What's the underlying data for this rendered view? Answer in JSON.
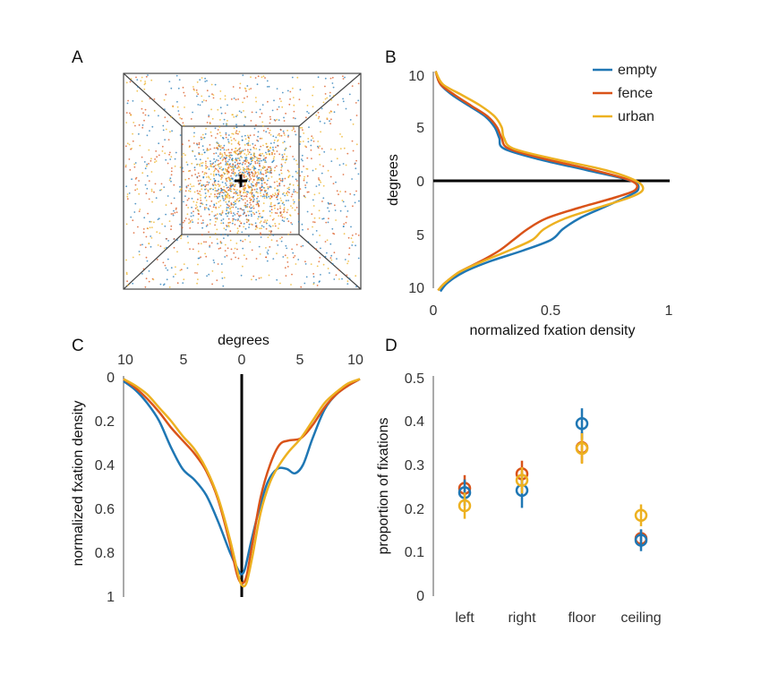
{
  "colors": {
    "empty": "#1f77b4",
    "fence": "#d95319",
    "urban": "#edb120"
  },
  "chart_data": [
    {
      "panel": "A",
      "type": "scatter",
      "title": "",
      "xlabel": "",
      "ylabel": "",
      "series": [
        {
          "key": "empty",
          "count": 700
        },
        {
          "key": "fence",
          "count": 700
        },
        {
          "key": "urban",
          "count": 700
        }
      ],
      "center_marker": "plus",
      "grid": false
    },
    {
      "panel": "B",
      "type": "line",
      "xlabel": "normalized fxation density",
      "ylabel": "degrees",
      "xlim": [
        0,
        1
      ],
      "ylim": [
        -10,
        10
      ],
      "xticks": [
        "0",
        "0.5",
        "1"
      ],
      "yticks": [
        "10",
        "5",
        "0",
        "5",
        "10"
      ],
      "reference_line": "y=0",
      "legend": {
        "placement": "top-right",
        "entries": [
          "empty",
          "fence",
          "urban"
        ]
      },
      "series": [
        {
          "name": "empty",
          "key": "empty",
          "points": [
            [
              0.01,
              10.2
            ],
            [
              0.03,
              9
            ],
            [
              0.08,
              8
            ],
            [
              0.15,
              7
            ],
            [
              0.22,
              6
            ],
            [
              0.26,
              5
            ],
            [
              0.28,
              4
            ],
            [
              0.3,
              3
            ],
            [
              0.45,
              2
            ],
            [
              0.65,
              1
            ],
            [
              0.84,
              0
            ],
            [
              0.87,
              -0.8
            ],
            [
              0.82,
              -1.5
            ],
            [
              0.72,
              -2.5
            ],
            [
              0.62,
              -3.5
            ],
            [
              0.55,
              -4.5
            ],
            [
              0.5,
              -5.5
            ],
            [
              0.38,
              -6.5
            ],
            [
              0.24,
              -7.5
            ],
            [
              0.13,
              -8.5
            ],
            [
              0.06,
              -9.5
            ],
            [
              0.03,
              -10.3
            ]
          ]
        },
        {
          "name": "fence",
          "key": "fence",
          "points": [
            [
              0.01,
              10.2
            ],
            [
              0.03,
              9
            ],
            [
              0.09,
              8
            ],
            [
              0.16,
              7
            ],
            [
              0.23,
              6
            ],
            [
              0.27,
              5
            ],
            [
              0.29,
              4
            ],
            [
              0.32,
              3
            ],
            [
              0.48,
              2
            ],
            [
              0.68,
              1
            ],
            [
              0.84,
              0
            ],
            [
              0.86,
              -0.8
            ],
            [
              0.78,
              -1.5
            ],
            [
              0.62,
              -2.5
            ],
            [
              0.48,
              -3.5
            ],
            [
              0.4,
              -4.5
            ],
            [
              0.34,
              -5.5
            ],
            [
              0.28,
              -6.5
            ],
            [
              0.2,
              -7.5
            ],
            [
              0.11,
              -8.5
            ],
            [
              0.05,
              -9.5
            ],
            [
              0.02,
              -10.2
            ]
          ]
        },
        {
          "name": "urban",
          "key": "urban",
          "points": [
            [
              0.01,
              10.2
            ],
            [
              0.04,
              9
            ],
            [
              0.12,
              8
            ],
            [
              0.2,
              7
            ],
            [
              0.26,
              6
            ],
            [
              0.29,
              5
            ],
            [
              0.3,
              4
            ],
            [
              0.34,
              3
            ],
            [
              0.52,
              2
            ],
            [
              0.73,
              1
            ],
            [
              0.86,
              0
            ],
            [
              0.89,
              -0.8
            ],
            [
              0.84,
              -1.5
            ],
            [
              0.7,
              -2.5
            ],
            [
              0.56,
              -3.5
            ],
            [
              0.47,
              -4.5
            ],
            [
              0.42,
              -5.5
            ],
            [
              0.32,
              -6.5
            ],
            [
              0.21,
              -7.5
            ],
            [
              0.11,
              -8.5
            ],
            [
              0.05,
              -9.5
            ],
            [
              0.02,
              -10.2
            ]
          ]
        }
      ]
    },
    {
      "panel": "C",
      "type": "line",
      "xlabel": "degrees",
      "ylabel": "normalized fxation density",
      "xlim": [
        -10,
        10
      ],
      "ylim": [
        0,
        1
      ],
      "y_inverted": true,
      "xticks": [
        "10",
        "5",
        "0",
        "5",
        "10"
      ],
      "yticks": [
        "0",
        "0.2",
        "0.4",
        "0.6",
        "0.8",
        "1"
      ],
      "reference_line": "x=0",
      "series": [
        {
          "name": "empty",
          "key": "empty",
          "points": [
            [
              -10,
              0.02
            ],
            [
              -9,
              0.06
            ],
            [
              -8,
              0.12
            ],
            [
              -7,
              0.2
            ],
            [
              -6,
              0.32
            ],
            [
              -5,
              0.42
            ],
            [
              -4,
              0.47
            ],
            [
              -3,
              0.54
            ],
            [
              -2,
              0.66
            ],
            [
              -1,
              0.8
            ],
            [
              -0.3,
              0.88
            ],
            [
              0,
              0.9
            ],
            [
              0.3,
              0.87
            ],
            [
              0.8,
              0.75
            ],
            [
              1.5,
              0.6
            ],
            [
              2.2,
              0.48
            ],
            [
              3,
              0.42
            ],
            [
              3.8,
              0.42
            ],
            [
              4.5,
              0.44
            ],
            [
              5.2,
              0.4
            ],
            [
              6,
              0.28
            ],
            [
              7,
              0.15
            ],
            [
              8,
              0.08
            ],
            [
              9,
              0.04
            ],
            [
              10,
              0.01
            ]
          ]
        },
        {
          "name": "fence",
          "key": "fence",
          "points": [
            [
              -10,
              0.01
            ],
            [
              -9,
              0.05
            ],
            [
              -8,
              0.1
            ],
            [
              -7,
              0.16
            ],
            [
              -6,
              0.23
            ],
            [
              -5,
              0.29
            ],
            [
              -4,
              0.35
            ],
            [
              -3,
              0.43
            ],
            [
              -2,
              0.56
            ],
            [
              -1,
              0.76
            ],
            [
              -0.4,
              0.9
            ],
            [
              0,
              0.94
            ],
            [
              0.4,
              0.91
            ],
            [
              0.9,
              0.76
            ],
            [
              1.6,
              0.55
            ],
            [
              2.4,
              0.4
            ],
            [
              3.2,
              0.31
            ],
            [
              4,
              0.29
            ],
            [
              5,
              0.28
            ],
            [
              6,
              0.22
            ],
            [
              7,
              0.14
            ],
            [
              8,
              0.08
            ],
            [
              9,
              0.04
            ],
            [
              10,
              0.01
            ]
          ]
        },
        {
          "name": "urban",
          "key": "urban",
          "points": [
            [
              -10,
              0.01
            ],
            [
              -9,
              0.04
            ],
            [
              -8,
              0.08
            ],
            [
              -7,
              0.14
            ],
            [
              -6,
              0.2
            ],
            [
              -5,
              0.27
            ],
            [
              -4,
              0.33
            ],
            [
              -3,
              0.42
            ],
            [
              -2,
              0.55
            ],
            [
              -1,
              0.74
            ],
            [
              -0.3,
              0.9
            ],
            [
              0,
              0.95
            ],
            [
              0.4,
              0.94
            ],
            [
              0.9,
              0.82
            ],
            [
              1.6,
              0.62
            ],
            [
              2.4,
              0.48
            ],
            [
              3.2,
              0.4
            ],
            [
              4,
              0.34
            ],
            [
              5,
              0.28
            ],
            [
              6,
              0.2
            ],
            [
              7,
              0.12
            ],
            [
              8,
              0.07
            ],
            [
              9,
              0.03
            ],
            [
              10,
              0.01
            ]
          ]
        }
      ]
    },
    {
      "panel": "D",
      "type": "scatter",
      "xlabel": "",
      "ylabel": "proportion of fixations",
      "ylim": [
        0,
        0.5
      ],
      "categories": [
        "left",
        "right",
        "floor",
        "ceiling"
      ],
      "yticks": [
        "0",
        "0.1",
        "0.2",
        "0.3",
        "0.4",
        "0.5"
      ],
      "series": [
        {
          "name": "empty",
          "key": "empty",
          "values": [
            0.237,
            0.242,
            0.395,
            0.128
          ],
          "errors": [
            0.03,
            0.04,
            0.035,
            0.025
          ]
        },
        {
          "name": "fence",
          "key": "fence",
          "values": [
            0.247,
            0.28,
            0.34,
            0.132
          ],
          "errors": [
            0.03,
            0.03,
            0.035,
            0.02
          ]
        },
        {
          "name": "urban",
          "key": "urban",
          "values": [
            0.207,
            0.265,
            0.338,
            0.185
          ],
          "errors": [
            0.03,
            0.03,
            0.035,
            0.025
          ]
        }
      ]
    }
  ]
}
